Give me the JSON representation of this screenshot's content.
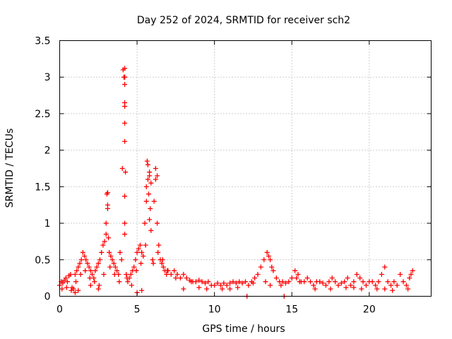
{
  "chart_data": {
    "type": "scatter",
    "title": "Day 252 of 2024, SRMTID for receiver sch2",
    "xlabel": "GPS time / hours",
    "ylabel": "SRMTID / TECUs",
    "xlim": [
      0,
      24
    ],
    "ylim": [
      0,
      3.5
    ],
    "x_ticks": [
      0,
      5,
      10,
      15,
      20
    ],
    "x_tick_labels": [
      "0",
      "5",
      "10",
      "15",
      "20"
    ],
    "y_ticks": [
      0,
      0.5,
      1,
      1.5,
      2,
      2.5,
      3,
      3.5
    ],
    "y_tick_labels": [
      "0",
      "0.5",
      "1",
      "1.5",
      "2",
      "2.5",
      "3",
      "3.5"
    ],
    "grid": true,
    "marker": "+",
    "marker_color": "#ff0000",
    "series": [
      {
        "name": "sch2",
        "x": [
          0.0,
          0.1,
          0.2,
          0.3,
          0.4,
          0.5,
          0.6,
          0.7,
          0.8,
          0.9,
          1.0,
          1.1,
          1.2,
          1.3,
          1.4,
          1.5,
          1.6,
          1.7,
          1.8,
          1.9,
          2.0,
          2.1,
          2.2,
          2.3,
          2.4,
          2.5,
          2.6,
          2.7,
          2.8,
          2.9,
          3.0,
          3.05,
          3.1,
          3.15,
          3.2,
          3.3,
          3.4,
          3.5,
          3.6,
          3.7,
          3.8,
          3.9,
          4.0,
          4.05,
          4.1,
          4.15,
          4.2,
          4.25,
          4.3,
          4.4,
          4.5,
          4.6,
          4.7,
          4.8,
          4.9,
          5.0,
          5.1,
          5.2,
          5.3,
          5.4,
          5.5,
          5.6,
          5.65,
          5.7,
          5.75,
          5.8,
          5.85,
          5.9,
          6.0,
          6.1,
          6.2,
          6.3,
          6.4,
          6.5,
          6.6,
          6.7,
          6.8,
          6.9,
          7.0,
          7.2,
          7.4,
          7.6,
          7.8,
          8.0,
          8.2,
          8.4,
          8.6,
          8.8,
          9.0,
          9.2,
          9.4,
          9.6,
          9.8,
          10.0,
          10.2,
          10.4,
          10.6,
          10.8,
          11.0,
          11.2,
          11.4,
          11.6,
          11.8,
          12.0,
          12.2,
          12.4,
          12.6,
          12.8,
          13.0,
          13.2,
          13.4,
          13.5,
          13.6,
          13.8,
          14.0,
          14.2,
          14.4,
          14.6,
          14.8,
          15.0,
          15.2,
          15.4,
          15.6,
          15.8,
          16.0,
          16.2,
          16.4,
          16.6,
          16.8,
          17.0,
          17.2,
          17.4,
          17.6,
          17.8,
          18.0,
          18.2,
          18.4,
          18.6,
          18.8,
          19.0,
          19.2,
          19.4,
          19.6,
          19.8,
          20.0,
          20.2,
          20.4,
          20.6,
          20.8,
          21.0,
          21.2,
          21.4,
          21.6,
          21.8,
          22.0,
          22.2,
          22.4,
          22.6,
          22.8,
          0.15,
          0.45,
          0.75,
          1.05,
          1.35,
          1.65,
          1.95,
          2.25,
          2.55,
          2.85,
          3.25,
          3.55,
          3.85,
          4.35,
          4.65,
          4.95,
          5.25,
          5.55,
          6.05,
          6.35,
          6.65,
          6.95,
          7.5,
          8.5,
          9.5,
          10.5,
          11.5,
          12.5,
          13.3,
          13.7,
          14.3,
          15.3,
          16.5,
          17.5,
          18.5,
          19.5,
          20.5,
          21.5,
          22.5,
          4.2,
          4.2,
          4.2,
          4.2,
          4.2,
          4.2,
          4.2,
          4.2,
          4.2,
          4.2,
          3.1,
          3.1,
          3.0,
          5.7,
          5.8,
          5.9,
          6.2,
          6.3,
          5.6,
          5.8,
          12.1,
          14.5,
          1.0,
          1.2,
          2.0,
          2.5,
          5.0,
          5.3,
          8.0,
          9.0,
          11.0,
          13.6,
          15.5,
          19.0,
          21.0,
          22.7
        ],
        "y": [
          0.15,
          0.2,
          0.18,
          0.22,
          0.25,
          0.2,
          0.28,
          0.3,
          0.12,
          0.1,
          0.3,
          0.35,
          0.4,
          0.45,
          0.5,
          0.6,
          0.55,
          0.5,
          0.45,
          0.4,
          0.35,
          0.3,
          0.25,
          0.35,
          0.4,
          0.45,
          0.5,
          0.6,
          0.7,
          0.75,
          1.0,
          1.4,
          1.2,
          0.8,
          0.6,
          0.55,
          0.5,
          0.45,
          0.4,
          0.35,
          0.3,
          0.6,
          0.5,
          1.75,
          3.1,
          3.0,
          2.9,
          1.7,
          0.3,
          0.2,
          0.25,
          0.3,
          0.35,
          0.4,
          0.5,
          0.6,
          0.65,
          0.7,
          0.6,
          0.55,
          1.0,
          1.5,
          1.85,
          1.6,
          1.4,
          1.7,
          1.2,
          0.9,
          0.5,
          1.3,
          1.6,
          1.0,
          0.7,
          0.5,
          0.45,
          0.4,
          0.35,
          0.3,
          0.35,
          0.3,
          0.35,
          0.3,
          0.25,
          0.3,
          0.25,
          0.22,
          0.2,
          0.2,
          0.22,
          0.2,
          0.18,
          0.2,
          0.15,
          0.15,
          0.18,
          0.15,
          0.18,
          0.15,
          0.18,
          0.2,
          0.18,
          0.2,
          0.18,
          0.2,
          0.15,
          0.2,
          0.25,
          0.3,
          0.4,
          0.5,
          0.6,
          0.55,
          0.5,
          0.35,
          0.25,
          0.2,
          0.2,
          0.18,
          0.2,
          0.25,
          0.35,
          0.3,
          0.2,
          0.2,
          0.25,
          0.2,
          0.15,
          0.2,
          0.2,
          0.18,
          0.15,
          0.2,
          0.25,
          0.2,
          0.15,
          0.18,
          0.2,
          0.25,
          0.15,
          0.2,
          0.3,
          0.25,
          0.2,
          0.15,
          0.2,
          0.2,
          0.15,
          0.2,
          0.3,
          0.4,
          0.2,
          0.15,
          0.2,
          0.15,
          0.3,
          0.2,
          0.15,
          0.25,
          0.35,
          0.1,
          0.12,
          0.08,
          0.2,
          0.3,
          0.35,
          0.25,
          0.2,
          0.15,
          0.3,
          0.4,
          0.3,
          0.2,
          0.25,
          0.15,
          0.35,
          0.45,
          0.7,
          0.45,
          0.6,
          0.5,
          0.35,
          0.25,
          0.2,
          0.1,
          0.1,
          0.12,
          0.18,
          0.2,
          0.4,
          0.15,
          0.25,
          0.1,
          0.1,
          0.12,
          0.1,
          0.1,
          0.08,
          0.1,
          1.37,
          1.0,
          0.85,
          2.12,
          2.37,
          2.6,
          2.65,
          3.0,
          3.0,
          3.12,
          1.42,
          1.25,
          0.85,
          1.8,
          1.65,
          1.55,
          1.75,
          1.65,
          1.3,
          1.05,
          0.0,
          0.0,
          0.05,
          0.08,
          0.15,
          0.1,
          0.05,
          0.08,
          0.1,
          0.12,
          0.1,
          0.15,
          0.2,
          0.12,
          0.1,
          0.3
        ]
      }
    ]
  }
}
